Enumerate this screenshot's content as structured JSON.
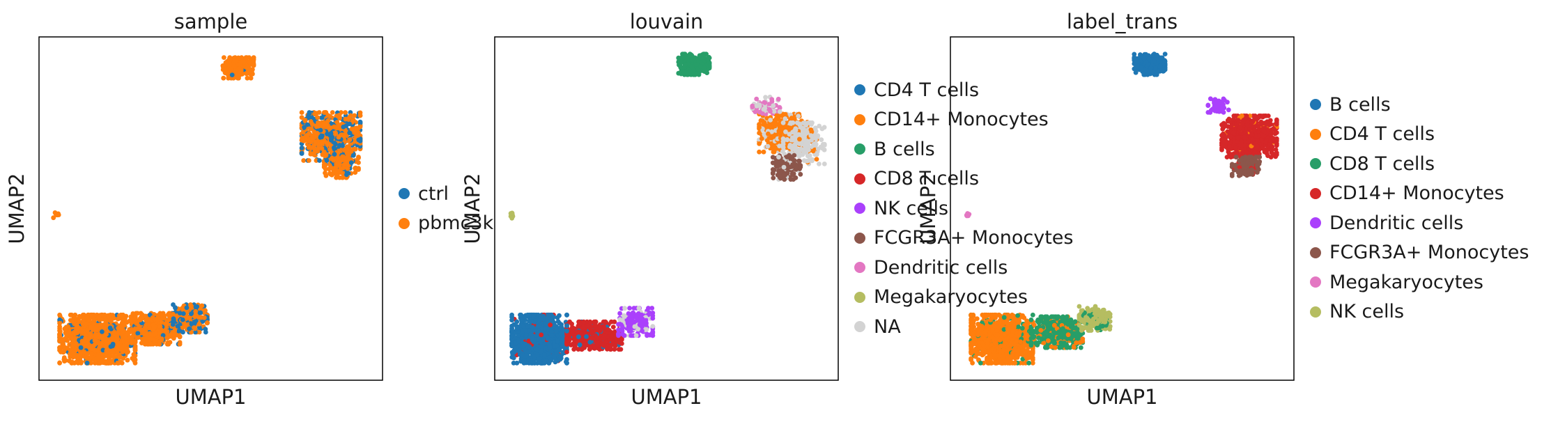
{
  "chart_data": [
    {
      "type": "scatter",
      "title": "sample",
      "xlabel": "UMAP1",
      "ylabel": "UMAP2",
      "grid": false,
      "legend_placement": "right",
      "series": [
        {
          "name": "ctrl",
          "color": "#1f77b4"
        },
        {
          "name": "pbmc3k",
          "color": "#ff7f0e"
        }
      ],
      "clusters": [
        {
          "x": 0.58,
          "y": 0.91,
          "rx": 0.045,
          "ry": 0.03,
          "n": 260,
          "mix": [
            [
              0.03,
              0
            ],
            [
              0.97,
              1
            ]
          ]
        },
        {
          "x": 0.85,
          "y": 0.71,
          "rx": 0.085,
          "ry": 0.07,
          "n": 700,
          "mix": [
            [
              0.35,
              0
            ],
            [
              0.65,
              1
            ]
          ]
        },
        {
          "x": 0.88,
          "y": 0.63,
          "rx": 0.05,
          "ry": 0.04,
          "n": 180,
          "mix": [
            [
              0.15,
              0
            ],
            [
              0.85,
              1
            ]
          ]
        },
        {
          "x": 0.05,
          "y": 0.48,
          "rx": 0.008,
          "ry": 0.008,
          "n": 8,
          "mix": [
            [
              0.0,
              0
            ],
            [
              1.0,
              1
            ]
          ]
        },
        {
          "x": 0.17,
          "y": 0.12,
          "rx": 0.11,
          "ry": 0.07,
          "n": 1300,
          "mix": [
            [
              0.08,
              0
            ],
            [
              0.92,
              1
            ]
          ]
        },
        {
          "x": 0.34,
          "y": 0.15,
          "rx": 0.07,
          "ry": 0.045,
          "n": 500,
          "mix": [
            [
              0.12,
              0
            ],
            [
              0.88,
              1
            ]
          ]
        },
        {
          "x": 0.44,
          "y": 0.18,
          "rx": 0.05,
          "ry": 0.04,
          "n": 220,
          "mix": [
            [
              0.45,
              0
            ],
            [
              0.55,
              1
            ]
          ]
        }
      ]
    },
    {
      "type": "scatter",
      "title": "louvain",
      "xlabel": "UMAP1",
      "ylabel": "UMAP2",
      "grid": false,
      "legend_placement": "right",
      "series": [
        {
          "name": "CD4 T cells",
          "color": "#1f77b4"
        },
        {
          "name": "CD14+ Monocytes",
          "color": "#ff7f0e"
        },
        {
          "name": "B cells",
          "color": "#279e68"
        },
        {
          "name": "CD8 T cells",
          "color": "#d62728"
        },
        {
          "name": "NK cells",
          "color": "#aa40fc"
        },
        {
          "name": "FCGR3A+ Monocytes",
          "color": "#8c564b"
        },
        {
          "name": "Dendritic cells",
          "color": "#e377c2"
        },
        {
          "name": "Megakaryocytes",
          "color": "#b5bd61"
        },
        {
          "name": "NA",
          "color": "#d3d3d3"
        }
      ],
      "clusters": [
        {
          "x": 0.58,
          "y": 0.92,
          "rx": 0.045,
          "ry": 0.03,
          "n": 260,
          "mix": [
            [
              1.0,
              2
            ]
          ]
        },
        {
          "x": 0.84,
          "y": 0.72,
          "rx": 0.07,
          "ry": 0.055,
          "n": 500,
          "mix": [
            [
              0.8,
              1
            ],
            [
              0.2,
              8
            ]
          ]
        },
        {
          "x": 0.9,
          "y": 0.69,
          "rx": 0.06,
          "ry": 0.06,
          "n": 180,
          "mix": [
            [
              0.9,
              8
            ],
            [
              0.1,
              1
            ]
          ]
        },
        {
          "x": 0.85,
          "y": 0.62,
          "rx": 0.04,
          "ry": 0.035,
          "n": 180,
          "mix": [
            [
              0.85,
              5
            ],
            [
              0.15,
              8
            ]
          ]
        },
        {
          "x": 0.79,
          "y": 0.8,
          "rx": 0.04,
          "ry": 0.025,
          "n": 60,
          "mix": [
            [
              0.55,
              6
            ],
            [
              0.45,
              8
            ]
          ]
        },
        {
          "x": 0.05,
          "y": 0.48,
          "rx": 0.008,
          "ry": 0.008,
          "n": 8,
          "mix": [
            [
              1.0,
              7
            ]
          ]
        },
        {
          "x": 0.13,
          "y": 0.12,
          "rx": 0.08,
          "ry": 0.07,
          "n": 1100,
          "mix": [
            [
              0.95,
              0
            ],
            [
              0.05,
              3
            ]
          ]
        },
        {
          "x": 0.29,
          "y": 0.13,
          "rx": 0.08,
          "ry": 0.04,
          "n": 500,
          "mix": [
            [
              0.9,
              3
            ],
            [
              0.1,
              0
            ]
          ]
        },
        {
          "x": 0.41,
          "y": 0.17,
          "rx": 0.05,
          "ry": 0.04,
          "n": 220,
          "mix": [
            [
              0.8,
              4
            ],
            [
              0.2,
              8
            ]
          ]
        }
      ]
    },
    {
      "type": "scatter",
      "title": "label_trans",
      "xlabel": "UMAP1",
      "ylabel": "UMAP2",
      "grid": false,
      "legend_placement": "right",
      "series": [
        {
          "name": "B cells",
          "color": "#1f77b4"
        },
        {
          "name": "CD4 T cells",
          "color": "#ff7f0e"
        },
        {
          "name": "CD8 T cells",
          "color": "#279e68"
        },
        {
          "name": "CD14+ Monocytes",
          "color": "#d62728"
        },
        {
          "name": "Dendritic cells",
          "color": "#aa40fc"
        },
        {
          "name": "FCGR3A+ Monocytes",
          "color": "#8c564b"
        },
        {
          "name": "Megakaryocytes",
          "color": "#e377c2"
        },
        {
          "name": "NK cells",
          "color": "#b5bd61"
        }
      ],
      "clusters": [
        {
          "x": 0.58,
          "y": 0.92,
          "rx": 0.045,
          "ry": 0.03,
          "n": 260,
          "mix": [
            [
              1.0,
              0
            ]
          ]
        },
        {
          "x": 0.87,
          "y": 0.71,
          "rx": 0.08,
          "ry": 0.06,
          "n": 650,
          "mix": [
            [
              0.95,
              3
            ],
            [
              0.05,
              1
            ]
          ]
        },
        {
          "x": 0.86,
          "y": 0.62,
          "rx": 0.04,
          "ry": 0.03,
          "n": 160,
          "mix": [
            [
              0.9,
              5
            ],
            [
              0.1,
              3
            ]
          ]
        },
        {
          "x": 0.78,
          "y": 0.8,
          "rx": 0.03,
          "ry": 0.02,
          "n": 50,
          "mix": [
            [
              1.0,
              4
            ]
          ]
        },
        {
          "x": 0.05,
          "y": 0.48,
          "rx": 0.008,
          "ry": 0.008,
          "n": 6,
          "mix": [
            [
              1.0,
              6
            ]
          ]
        },
        {
          "x": 0.15,
          "y": 0.12,
          "rx": 0.09,
          "ry": 0.07,
          "n": 1200,
          "mix": [
            [
              0.93,
              1
            ],
            [
              0.07,
              2
            ]
          ]
        },
        {
          "x": 0.31,
          "y": 0.14,
          "rx": 0.075,
          "ry": 0.045,
          "n": 500,
          "mix": [
            [
              0.85,
              2
            ],
            [
              0.15,
              1
            ]
          ]
        },
        {
          "x": 0.42,
          "y": 0.18,
          "rx": 0.045,
          "ry": 0.035,
          "n": 220,
          "mix": [
            [
              0.85,
              7
            ],
            [
              0.15,
              2
            ]
          ]
        }
      ]
    }
  ]
}
